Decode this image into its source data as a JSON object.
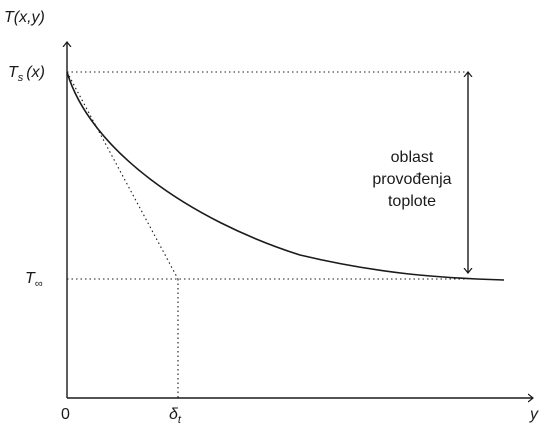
{
  "labels": {
    "y_axis": "T(x,y)",
    "x_axis": "y",
    "ts": "T",
    "ts_sub": "s",
    "ts_arg": "(x)",
    "tinf": "T",
    "tinf_sub": "∞",
    "origin": "0",
    "delta": "δ",
    "delta_sub": "t"
  },
  "annotation": {
    "line1": "oblast",
    "line2": "provođenja",
    "line3": "toplote"
  },
  "colors": {
    "ink": "#1a1a1a"
  }
}
